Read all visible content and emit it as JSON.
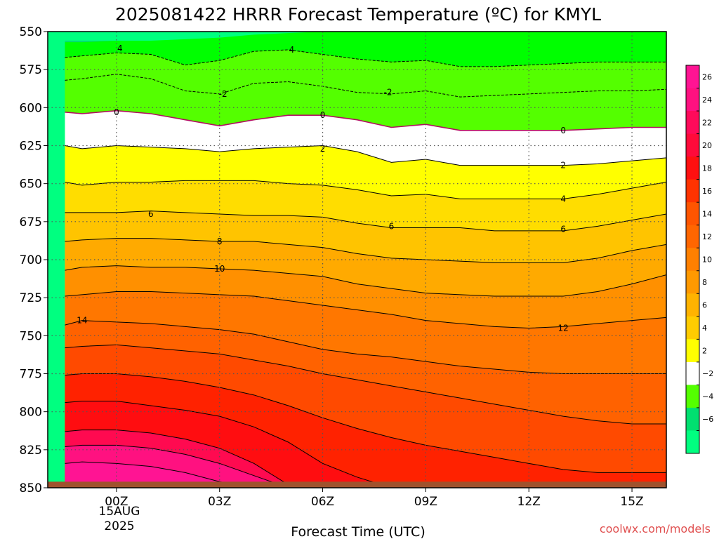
{
  "chart_data": {
    "type": "heatmap",
    "title": "2025081422 HRRR Forecast Temperature (ºC) for KMYL",
    "xlabel": "Forecast Time (UTC)",
    "ylabel": "",
    "xlim": [
      -2,
      16
    ],
    "ylim": [
      550,
      850
    ],
    "x_tick_values": [
      0,
      3,
      6,
      9,
      12,
      15
    ],
    "x_tick_labels": [
      "00Z",
      "03Z",
      "06Z",
      "09Z",
      "12Z",
      "15Z"
    ],
    "x_date_label": [
      "15AUG",
      "2025"
    ],
    "y_tick_values": [
      550,
      575,
      600,
      625,
      650,
      675,
      700,
      725,
      750,
      775,
      800,
      825,
      850
    ],
    "y_tick_labels": [
      "550",
      "575",
      "600",
      "625",
      "650",
      "675",
      "700",
      "725",
      "750",
      "775",
      "800",
      "825",
      "850"
    ],
    "grid": true,
    "legend": "right",
    "colorbar": {
      "labels": [
        "26",
        "24",
        "22",
        "20",
        "18",
        "16",
        "14",
        "12",
        "10",
        "8",
        "6",
        "4",
        "2",
        "−2",
        "−4",
        "−6"
      ],
      "levels": [
        27,
        26,
        24,
        22,
        20,
        18,
        16,
        14,
        12,
        10,
        8,
        6,
        4,
        2,
        -2,
        -4,
        -6,
        -7
      ],
      "colors": [
        "#ff1493",
        "#ff1180",
        "#ff0a5a",
        "#ff0a3a",
        "#ff1010",
        "#ff3300",
        "#ff5500",
        "#ff6600",
        "#ff8000",
        "#ff9900",
        "#ffb300",
        "#ffcc00",
        "#ffff00",
        "#ffffff",
        "#54ff00",
        "#00e070",
        "#00ff80"
      ]
    },
    "times": [
      -1.5,
      -1,
      0,
      1,
      2,
      3,
      4,
      5,
      6,
      7,
      8,
      9,
      10,
      11,
      12,
      13,
      14,
      15,
      16
    ],
    "contour_labels": [
      {
        "value": "4",
        "x": 0.1,
        "p": 561
      },
      {
        "value": "4",
        "x": 5.1,
        "p": 562
      },
      {
        "value": "-2",
        "x": 3.1,
        "p": 591
      },
      {
        "value": "-2",
        "x": 7.9,
        "p": 590
      },
      {
        "value": "0",
        "x": 0.0,
        "p": 603
      },
      {
        "value": "0",
        "x": 6.0,
        "p": 605
      },
      {
        "value": "0",
        "x": 13.0,
        "p": 615
      },
      {
        "value": "2",
        "x": 6.0,
        "p": 627
      },
      {
        "value": "2",
        "x": 13.0,
        "p": 638
      },
      {
        "value": "4",
        "x": 13.0,
        "p": 660
      },
      {
        "value": "6",
        "x": 1.0,
        "p": 670
      },
      {
        "value": "6",
        "x": 8.0,
        "p": 678
      },
      {
        "value": "6",
        "x": 13.0,
        "p": 680
      },
      {
        "value": "8",
        "x": 3.0,
        "p": 688
      },
      {
        "value": "10",
        "x": 3.0,
        "p": 706
      },
      {
        "value": "12",
        "x": 13.0,
        "p": 745
      },
      {
        "value": "14",
        "x": -1.0,
        "p": 740
      }
    ],
    "contours": [
      {
        "level": -6,
        "p": [
          556,
          556,
          556,
          556,
          556,
          556,
          556,
          556,
          556,
          556,
          556,
          556,
          556,
          556,
          556,
          556,
          556,
          556,
          556
        ]
      },
      {
        "level": -4,
        "p": [
          557,
          557,
          556,
          556,
          555,
          554,
          552,
          551,
          550,
          550,
          550,
          550,
          550,
          550,
          550,
          550,
          550,
          550,
          550
        ]
      },
      {
        "level": 4,
        "p": [
          567,
          566,
          564,
          565,
          572,
          569,
          563,
          562,
          565,
          568,
          570,
          569,
          573,
          573,
          572,
          571,
          570,
          570,
          570
        ]
      },
      {
        "level": -2,
        "p": [
          582,
          581,
          578,
          581,
          589,
          591,
          584,
          583,
          586,
          590,
          591,
          589,
          593,
          592,
          591,
          590,
          589,
          589,
          588
        ]
      },
      {
        "level": 0,
        "p": [
          603,
          604,
          602,
          604,
          608,
          612,
          608,
          605,
          605,
          608,
          613,
          611,
          615,
          615,
          615,
          615,
          614,
          613,
          613
        ]
      },
      {
        "level": 2,
        "p": [
          625,
          627,
          625,
          626,
          627,
          629,
          627,
          626,
          625,
          629,
          636,
          634,
          638,
          638,
          638,
          638,
          637,
          635,
          633
        ]
      },
      {
        "level": 4,
        "p": [
          649,
          651,
          649,
          649,
          648,
          648,
          648,
          650,
          651,
          654,
          658,
          657,
          660,
          660,
          660,
          660,
          657,
          653,
          649
        ]
      },
      {
        "level": 6,
        "p": [
          669,
          669,
          669,
          668,
          669,
          670,
          671,
          671,
          672,
          676,
          679,
          679,
          679,
          681,
          681,
          681,
          678,
          674,
          670
        ]
      },
      {
        "level": 8,
        "p": [
          688,
          687,
          686,
          686,
          687,
          688,
          688,
          690,
          692,
          696,
          699,
          700,
          701,
          702,
          702,
          702,
          699,
          694,
          690
        ]
      },
      {
        "level": 10,
        "p": [
          707,
          705,
          704,
          705,
          705,
          706,
          707,
          709,
          711,
          716,
          719,
          722,
          723,
          724,
          724,
          724,
          721,
          716,
          710
        ]
      },
      {
        "level": 12,
        "p": [
          724,
          723,
          721,
          721,
          722,
          723,
          724,
          727,
          730,
          733,
          736,
          740,
          742,
          744,
          745,
          744,
          742,
          740,
          738
        ]
      },
      {
        "level": 14,
        "p": [
          743,
          740,
          741,
          742,
          744,
          746,
          749,
          754,
          759,
          762,
          764,
          767,
          770,
          772,
          774,
          775,
          775,
          775,
          775
        ]
      },
      {
        "level": 16,
        "p": [
          758,
          757,
          756,
          758,
          760,
          762,
          766,
          770,
          775,
          779,
          783,
          787,
          791,
          795,
          799,
          803,
          806,
          808,
          808
        ]
      },
      {
        "level": 18,
        "p": [
          776,
          775,
          775,
          777,
          780,
          784,
          789,
          796,
          804,
          811,
          817,
          822,
          826,
          830,
          834,
          838,
          840,
          840,
          840
        ]
      },
      {
        "level": 20,
        "p": [
          794,
          793,
          793,
          796,
          799,
          803,
          810,
          820,
          834,
          843,
          850,
          850,
          850,
          850,
          850,
          850,
          850,
          850,
          850
        ]
      },
      {
        "level": 22,
        "p": [
          813,
          812,
          812,
          814,
          818,
          824,
          834,
          848,
          850,
          850,
          850,
          850,
          850,
          850,
          850,
          850,
          850,
          850,
          850
        ]
      },
      {
        "level": 24,
        "p": [
          823,
          822,
          822,
          824,
          828,
          834,
          842,
          850,
          850,
          850,
          850,
          850,
          850,
          850,
          850,
          850,
          850,
          850,
          850
        ]
      },
      {
        "level": 26,
        "p": [
          834,
          833,
          834,
          836,
          840,
          846,
          850,
          850,
          850,
          850,
          850,
          850,
          850,
          850,
          850,
          850,
          850,
          850,
          850
        ]
      }
    ],
    "ground": {
      "top_p": 846
    }
  },
  "watermark": "coolwx.com/models"
}
